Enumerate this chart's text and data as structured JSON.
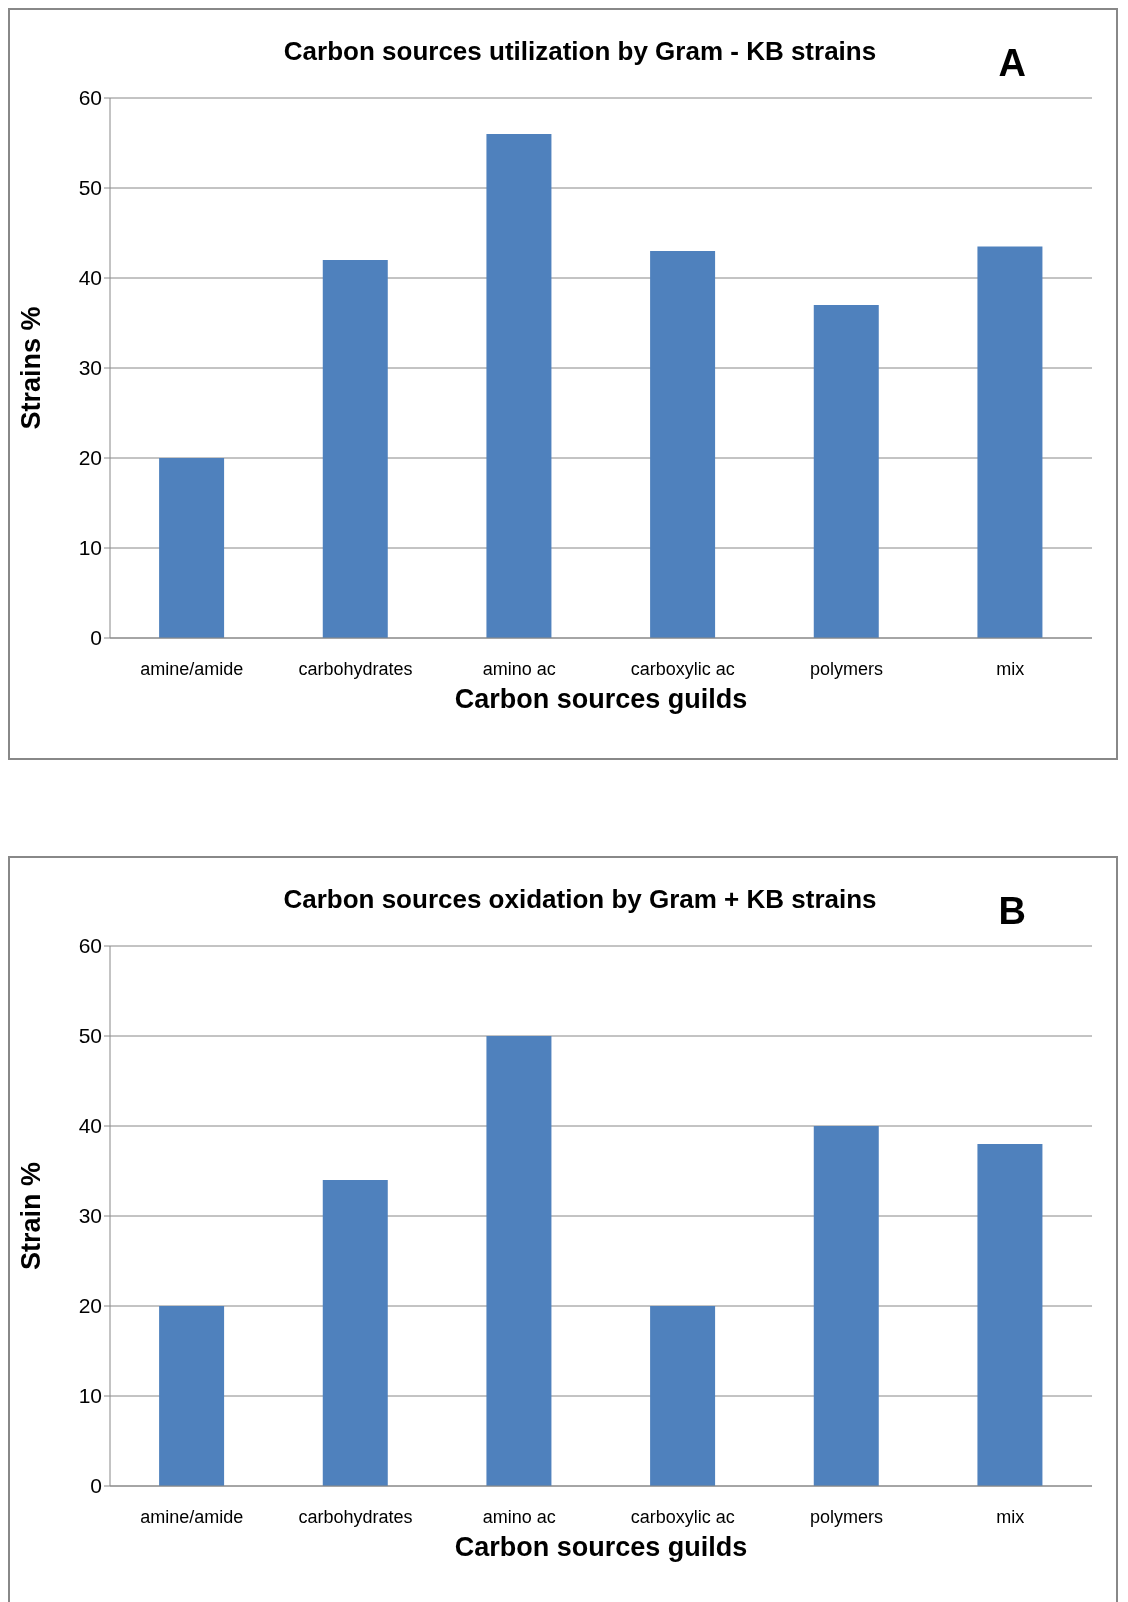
{
  "chart_data": [
    {
      "type": "bar",
      "title": "Carbon sources utilization by Gram - KB strains",
      "xlabel": "Carbon sources guilds",
      "ylabel": "Strains %",
      "annotations": [
        "A"
      ],
      "categories": [
        "amine/amide",
        "carbohydrates",
        "amino ac",
        "carboxylic ac",
        "polymers",
        "mix"
      ],
      "values": [
        20,
        42,
        56,
        43,
        37,
        43.5
      ],
      "color": "#4f81bd",
      "ylim": [
        0,
        60
      ],
      "yticks": [
        0,
        10,
        20,
        30,
        40,
        50,
        60
      ],
      "grid": "y",
      "legend": false
    },
    {
      "type": "bar",
      "title": "Carbon sources oxidation by Gram + KB strains",
      "xlabel": "Carbon sources guilds",
      "ylabel": "Strain %",
      "annotations": [
        "B"
      ],
      "categories": [
        "amine/amide",
        "carbohydrates",
        "amino ac",
        "carboxylic ac",
        "polymers",
        "mix"
      ],
      "values": [
        20,
        34,
        50,
        20,
        40,
        38
      ],
      "color": "#4f81bd",
      "ylim": [
        0,
        60
      ],
      "yticks": [
        0,
        10,
        20,
        30,
        40,
        50,
        60
      ],
      "grid": "y",
      "legend": false
    }
  ]
}
